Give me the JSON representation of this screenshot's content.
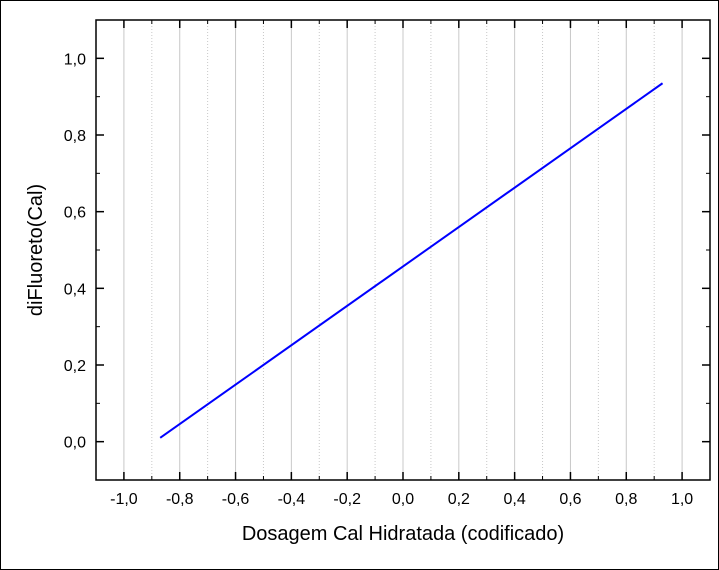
{
  "chart_data": {
    "type": "line",
    "xlabel": "Dosagem Cal Hidratada (codificado)",
    "ylabel": "diFluoreto(Cal)",
    "xlim": [
      -1.1,
      1.1
    ],
    "ylim": [
      -0.1,
      1.1
    ],
    "xticks": [
      -1.0,
      -0.8,
      -0.6,
      -0.4,
      -0.2,
      0.0,
      0.2,
      0.4,
      0.6,
      0.8,
      1.0
    ],
    "xtick_labels": [
      "-1,0",
      "-0,8",
      "-0,6",
      "-0,4",
      "-0,2",
      "0,0",
      "0,2",
      "0,4",
      "0,6",
      "0,8",
      "1,0"
    ],
    "yticks": [
      0.0,
      0.2,
      0.4,
      0.6,
      0.8,
      1.0
    ],
    "ytick_labels": [
      "0,0",
      "0,2",
      "0,4",
      "0,6",
      "0,8",
      "1,0"
    ],
    "grid": {
      "vertical": true,
      "horizontal": false
    },
    "series": [
      {
        "color": "#0000ff",
        "x": [
          -0.87,
          0.93
        ],
        "y": [
          0.01,
          0.935
        ]
      }
    ]
  }
}
